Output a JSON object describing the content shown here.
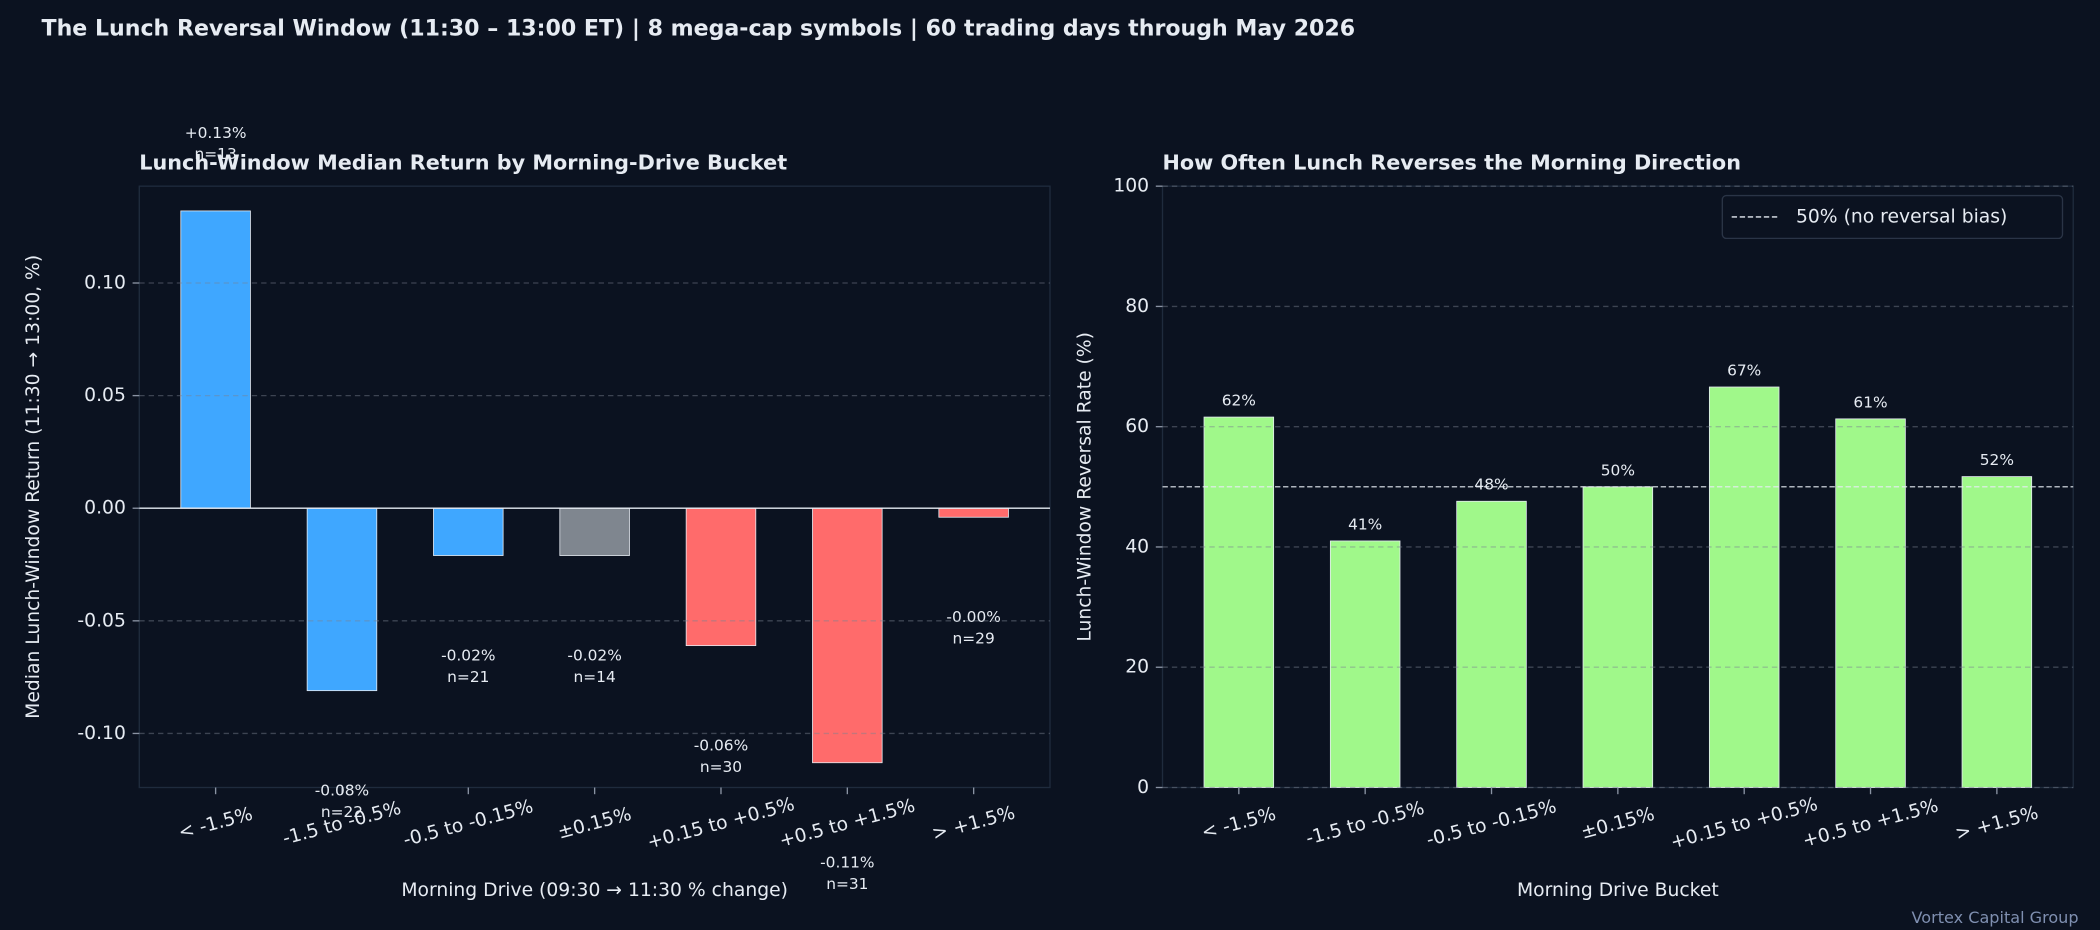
{
  "title": "The Lunch Reversal Window  (11:30 – 13:00 ET)  |  8 mega-cap symbols  |  60 trading days through May 2026",
  "footer": "Vortex Capital Group",
  "chart_data": [
    {
      "type": "bar",
      "title": "Lunch-Window Median Return by Morning-Drive Bucket",
      "x_label": "Morning Drive  (09:30 → 11:30 % change)",
      "y_label": "Median Lunch-Window Return  (11:30 → 13:00, %)",
      "categories": [
        "< -1.5%",
        "-1.5 to -0.5%",
        "-0.5 to -0.15%",
        "±0.15%",
        "+0.15 to +0.5%",
        "+0.5 to +1.5%",
        "> +1.5%"
      ],
      "values": [
        0.132,
        -0.081,
        -0.021,
        -0.021,
        -0.061,
        -0.113,
        -0.004
      ],
      "value_labels": [
        "+0.13%",
        "-0.08%",
        "-0.02%",
        "-0.02%",
        "-0.06%",
        "-0.11%",
        "-0.00%"
      ],
      "count_labels": [
        "n=13",
        "n=22",
        "n=21",
        "n=14",
        "n=30",
        "n=31",
        "n=29"
      ],
      "colors": [
        "#3fa7ff",
        "#3fa7ff",
        "#3fa7ff",
        "#7f868f",
        "#ff6b6b",
        "#ff6b6b",
        "#ff6b6b"
      ],
      "ylim": [
        -0.124,
        0.143
      ],
      "yticks": [
        {
          "value": -0.1,
          "label": "-0.10"
        },
        {
          "value": -0.05,
          "label": "-0.05"
        },
        {
          "value": 0,
          "label": "0.00"
        },
        {
          "value": 0.05,
          "label": "0.05"
        },
        {
          "value": 0.1,
          "label": "0.10"
        }
      ],
      "grid": true,
      "zero_line": true
    },
    {
      "type": "bar",
      "title": "How Often Lunch Reverses the Morning Direction",
      "x_label": "Morning Drive Bucket",
      "y_label": "Lunch-Window Reversal Rate (%)",
      "categories": [
        "< -1.5%",
        "-1.5 to -0.5%",
        "-0.5 to -0.15%",
        "±0.15%",
        "+0.15 to +0.5%",
        "+0.5 to +1.5%",
        "> +1.5%"
      ],
      "values": [
        61.6,
        41,
        47.6,
        50,
        66.6,
        61.3,
        51.7
      ],
      "value_labels": [
        "62%",
        "41%",
        "48%",
        "50%",
        "67%",
        "61%",
        "52%"
      ],
      "color": "#a0f88a",
      "ylim": [
        0,
        100
      ],
      "yticks": [
        0,
        20,
        40,
        60,
        80,
        100
      ],
      "grid": true,
      "reference_line": {
        "value": 50,
        "label": "50% (no reversal bias)"
      },
      "legend": "upper right"
    }
  ]
}
